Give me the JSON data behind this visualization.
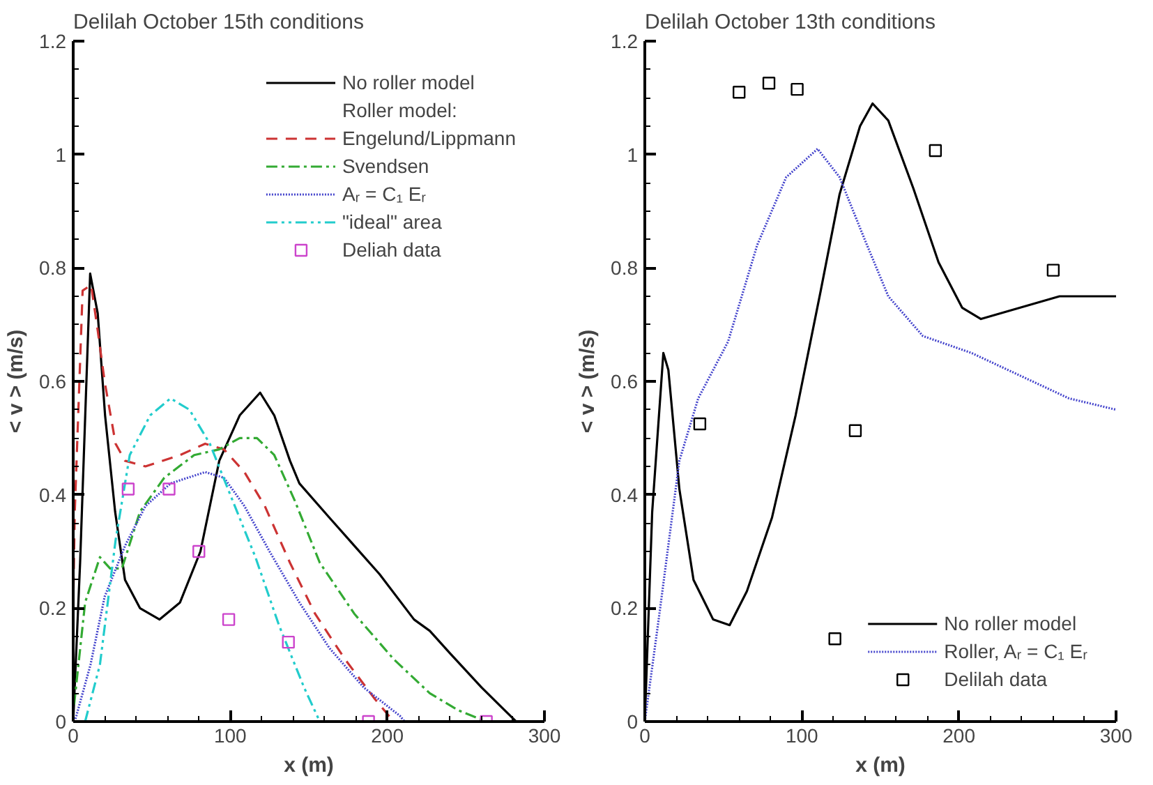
{
  "chart_data": [
    {
      "type": "line",
      "title": "Delilah October 15th conditions",
      "xlabel": "x (m)",
      "ylabel": "< v > (m/s)",
      "xlim": [
        0,
        300
      ],
      "ylim": [
        0,
        1.2
      ],
      "xticks": [
        0,
        100,
        200,
        300
      ],
      "yticks": [
        0,
        0.2,
        0.4,
        0.6,
        0.8,
        1,
        1.2
      ],
      "grid": false,
      "legend": "top right",
      "annotations": [
        "Roller model:"
      ],
      "series": [
        {
          "name": "No roller model",
          "type": "line",
          "line_style": "solid",
          "color": "#000000",
          "x": [
            0,
            4.4,
            10.8,
            15.6,
            20.3,
            26.7,
            33,
            42.5,
            55,
            68,
            81,
            93,
            106,
            119,
            128,
            138,
            144,
            163,
            195,
            217,
            227,
            240,
            260,
            282
          ],
          "values": [
            0,
            0.28,
            0.79,
            0.72,
            0.54,
            0.37,
            0.25,
            0.2,
            0.18,
            0.21,
            0.3,
            0.46,
            0.54,
            0.58,
            0.54,
            0.46,
            0.42,
            0.36,
            0.26,
            0.18,
            0.16,
            0.12,
            0.06,
            0
          ]
        },
        {
          "name": "Engelund/Lippmann",
          "type": "line",
          "line_style": "dashed",
          "color": "#cc3333",
          "x": [
            0,
            1,
            6,
            11.4,
            15.6,
            20,
            27,
            33,
            46,
            68,
            84,
            96,
            109,
            122,
            138,
            154,
            173,
            192,
            204
          ],
          "values": [
            0.2,
            0.37,
            0.76,
            0.77,
            0.69,
            0.6,
            0.49,
            0.46,
            0.45,
            0.47,
            0.49,
            0.48,
            0.44,
            0.38,
            0.28,
            0.19,
            0.11,
            0.04,
            0
          ]
        },
        {
          "name": "Svendsen",
          "type": "line",
          "line_style": "dashdot",
          "color": "#33aa33",
          "x": [
            0.6,
            7.6,
            17,
            23.5,
            31,
            42.5,
            58,
            77,
            93,
            106,
            117,
            128,
            141,
            157,
            179,
            204,
            227,
            245,
            263
          ],
          "values": [
            0.03,
            0.21,
            0.29,
            0.27,
            0.27,
            0.37,
            0.43,
            0.47,
            0.48,
            0.5,
            0.5,
            0.47,
            0.39,
            0.28,
            0.19,
            0.11,
            0.05,
            0.02,
            0
          ]
        },
        {
          "name": "Aᵣ = C₁ Eᵣ",
          "type": "line",
          "line_style": "dotted",
          "color": "#4444cc",
          "x": [
            1,
            11,
            20,
            33,
            46,
            62,
            84,
            96,
            109,
            125,
            144,
            163,
            185,
            208,
            211
          ],
          "values": [
            0,
            0.1,
            0.22,
            0.31,
            0.38,
            0.42,
            0.44,
            0.43,
            0.38,
            0.3,
            0.21,
            0.13,
            0.06,
            0.01,
            0
          ]
        },
        {
          "name": "\"ideal\" area",
          "type": "line",
          "line_style": "dashdotdot",
          "color": "#22cccc",
          "x": [
            7.6,
            17,
            27,
            36,
            49,
            62,
            74,
            87,
            100,
            116,
            131,
            147,
            157
          ],
          "values": [
            0,
            0.1,
            0.32,
            0.47,
            0.54,
            0.57,
            0.55,
            0.49,
            0.4,
            0.29,
            0.17,
            0.06,
            0
          ]
        },
        {
          "name": "Deliah data",
          "type": "scatter",
          "marker": "square",
          "color": "#cc44cc",
          "x": [
            35,
            61,
            80,
            99,
            137,
            188,
            263
          ],
          "values": [
            0.41,
            0.41,
            0.3,
            0.18,
            0.14,
            0,
            0
          ]
        }
      ]
    },
    {
      "type": "line",
      "title": "Delilah October 13th conditions",
      "xlabel": "x (m)",
      "ylabel": "< v > (m/s)",
      "xlim": [
        0,
        300
      ],
      "ylim": [
        0,
        1.2
      ],
      "xticks": [
        0,
        100,
        200,
        300
      ],
      "yticks": [
        0,
        0.2,
        0.4,
        0.6,
        0.8,
        1,
        1.2
      ],
      "grid": false,
      "legend": "bottom right",
      "series": [
        {
          "name": "No roller model",
          "type": "line",
          "line_style": "solid",
          "color": "#000000",
          "x": [
            0,
            4.7,
            11.8,
            15,
            22,
            31,
            43.5,
            54,
            65,
            81,
            96,
            112,
            124,
            137,
            145,
            155,
            171,
            187,
            202,
            214,
            239,
            264,
            300
          ],
          "values": [
            0,
            0.37,
            0.65,
            0.62,
            0.41,
            0.25,
            0.18,
            0.17,
            0.23,
            0.36,
            0.54,
            0.76,
            0.93,
            1.05,
            1.09,
            1.06,
            0.94,
            0.81,
            0.73,
            0.71,
            0.73,
            0.75,
            0.75
          ]
        },
        {
          "name": "Roller, Aᵣ = C₁ Eᵣ",
          "type": "line",
          "line_style": "dotted",
          "color": "#4444cc",
          "x": [
            0,
            9.3,
            22,
            34,
            53,
            71.5,
            90,
            110,
            124,
            140,
            155,
            177,
            208,
            239,
            270,
            300
          ],
          "values": [
            0,
            0.19,
            0.46,
            0.57,
            0.67,
            0.84,
            0.96,
            1.01,
            0.96,
            0.85,
            0.75,
            0.68,
            0.65,
            0.61,
            0.57,
            0.55
          ]
        },
        {
          "name": "Delilah data",
          "type": "scatter",
          "marker": "square",
          "color": "#000000",
          "x": [
            35,
            60,
            79,
            97,
            121,
            134,
            185,
            260
          ],
          "values": [
            0.525,
            1.11,
            1.126,
            1.115,
            0.146,
            0.513,
            1.007,
            0.796
          ]
        }
      ]
    }
  ]
}
